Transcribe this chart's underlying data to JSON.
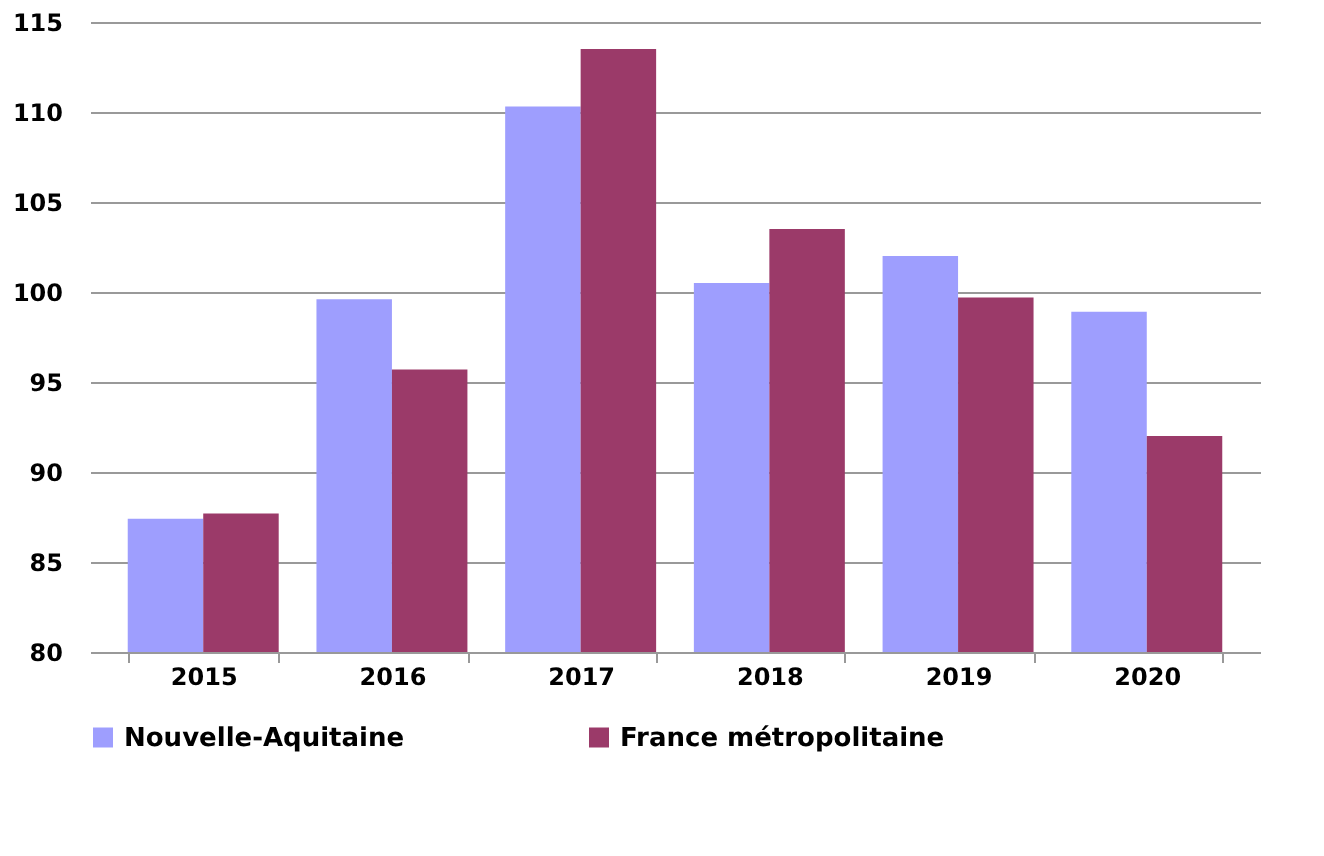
{
  "chart_data": {
    "type": "bar",
    "categories": [
      "2015",
      "2016",
      "2017",
      "2018",
      "2019",
      "2020"
    ],
    "series": [
      {
        "name": "Nouvelle-Aquitaine",
        "color": "#9e9efe",
        "values": [
          87.4,
          99.6,
          110.3,
          100.5,
          102.0,
          98.9
        ]
      },
      {
        "name": "France métropolitaine",
        "color": "#9b3a69",
        "values": [
          87.7,
          95.7,
          113.5,
          103.5,
          99.7,
          92.0
        ]
      }
    ],
    "ylim": [
      80,
      115
    ],
    "yticks": [
      80,
      85,
      90,
      95,
      100,
      105,
      110,
      115
    ],
    "grid": "y",
    "legend": "bottom"
  }
}
